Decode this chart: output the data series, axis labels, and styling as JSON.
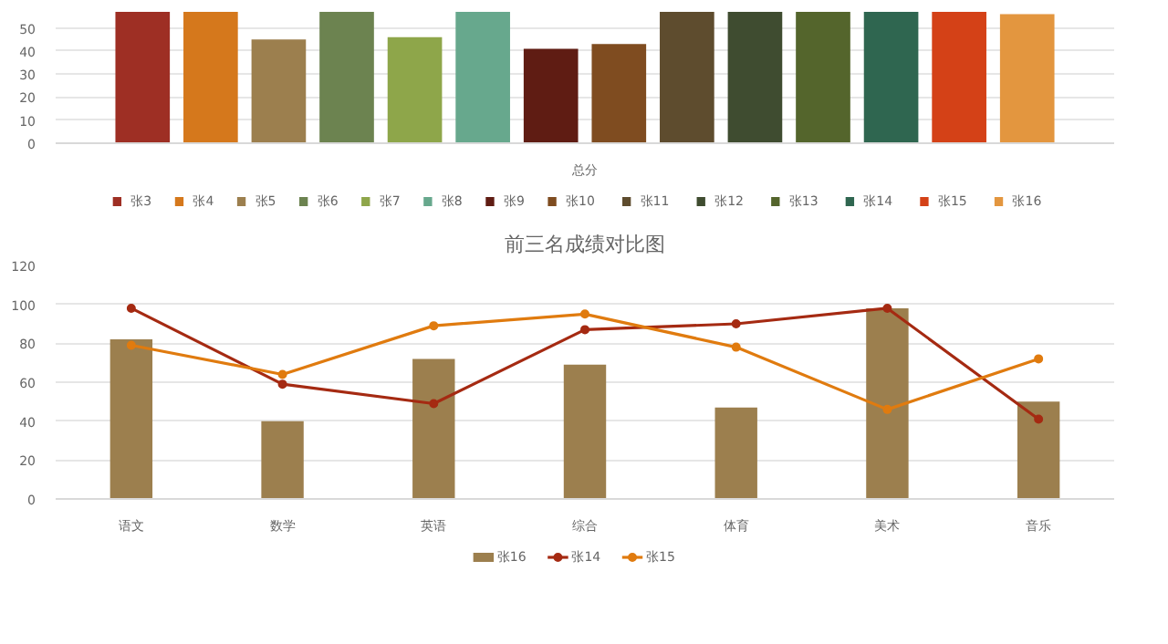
{
  "chart_data": [
    {
      "type": "bar",
      "categories": [
        "总分"
      ],
      "ylim": [
        0,
        57
      ],
      "yticks": [
        0,
        10,
        20,
        30,
        40,
        50
      ],
      "grid": "y",
      "legend": "bottom",
      "series": [
        {
          "name": "张3",
          "color": "#9e2f24",
          "values": [
            57
          ]
        },
        {
          "name": "张4",
          "color": "#d5781c",
          "values": [
            57
          ]
        },
        {
          "name": "张5",
          "color": "#9c7f4e",
          "values": [
            45
          ]
        },
        {
          "name": "张6",
          "color": "#6c8350",
          "values": [
            57
          ]
        },
        {
          "name": "张7",
          "color": "#8ea64a",
          "values": [
            46
          ]
        },
        {
          "name": "张8",
          "color": "#67a88d",
          "values": [
            57
          ]
        },
        {
          "name": "张9",
          "color": "#5f1c13",
          "values": [
            41
          ]
        },
        {
          "name": "张10",
          "color": "#7f4c20",
          "values": [
            43
          ]
        },
        {
          "name": "张11",
          "color": "#5e4c2e",
          "values": [
            57
          ]
        },
        {
          "name": "张12",
          "color": "#3f4c30",
          "values": [
            57
          ]
        },
        {
          "name": "张13",
          "color": "#54652c",
          "values": [
            57
          ]
        },
        {
          "name": "张14",
          "color": "#2f6650",
          "values": [
            57
          ]
        },
        {
          "name": "张15",
          "color": "#d44117",
          "values": [
            57
          ]
        },
        {
          "name": "张16",
          "color": "#e3963f",
          "values": [
            56
          ]
        }
      ]
    },
    {
      "type": "bar",
      "title": "前三名成绩对比图",
      "categories": [
        "语文",
        "数学",
        "英语",
        "综合",
        "体育",
        "美术",
        "音乐"
      ],
      "ylim": [
        0,
        120
      ],
      "yticks": [
        0,
        20,
        40,
        60,
        80,
        100,
        120
      ],
      "grid": "y",
      "legend": "bottom",
      "marker": "circle",
      "line_style": "solid",
      "series": [
        {
          "name": "张16",
          "type": "bar",
          "color": "#9c7f4e",
          "values": [
            82,
            40,
            72,
            69,
            47,
            98,
            50
          ]
        },
        {
          "name": "张14",
          "type": "line",
          "color": "#a52a12",
          "values": [
            98,
            59,
            49,
            87,
            90,
            98,
            41
          ]
        },
        {
          "name": "张15",
          "type": "line",
          "color": "#e07b0f",
          "values": [
            79,
            64,
            89,
            95,
            78,
            46,
            72
          ]
        }
      ]
    }
  ]
}
